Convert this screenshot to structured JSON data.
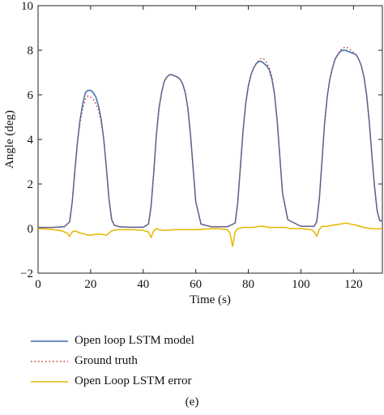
{
  "chart_data": {
    "type": "line",
    "xlabel": "Time (s)",
    "ylabel": "Angle (deg)",
    "xlim": [
      0,
      131
    ],
    "ylim": [
      -2,
      10
    ],
    "xticks": [
      0,
      20,
      40,
      60,
      80,
      100,
      120
    ],
    "yticks": [
      -2,
      0,
      2,
      4,
      6,
      8,
      10
    ],
    "grid": false,
    "legend_position": "below",
    "series": [
      {
        "name": "Open loop LSTM model",
        "color": "#3a6fb0",
        "style": "solid",
        "x": [
          0,
          5,
          10,
          12,
          13,
          14,
          15,
          16,
          17,
          18,
          19,
          20,
          21,
          22,
          23,
          24,
          25,
          26,
          27,
          28,
          29,
          31,
          35,
          40,
          42,
          43,
          44,
          45,
          46,
          47,
          48,
          49,
          50,
          51,
          52,
          53,
          54,
          55,
          56,
          57,
          58,
          59,
          60,
          62,
          66,
          72,
          75,
          76,
          77,
          78,
          79,
          80,
          81,
          82,
          83,
          84,
          85,
          86,
          87,
          88,
          89,
          90,
          91,
          92,
          93,
          95,
          100,
          105,
          106,
          107,
          108,
          109,
          110,
          111,
          112,
          113,
          114,
          115,
          116,
          117,
          118,
          119,
          120,
          121,
          122,
          123,
          124,
          125,
          126,
          127,
          128,
          129,
          130,
          131
        ],
        "values": [
          0.05,
          0.05,
          0.08,
          0.3,
          1.2,
          2.6,
          3.9,
          4.9,
          5.6,
          6.1,
          6.2,
          6.2,
          6.1,
          5.9,
          5.5,
          4.9,
          4.0,
          2.7,
          1.3,
          0.4,
          0.15,
          0.08,
          0.06,
          0.06,
          0.2,
          1.0,
          2.5,
          4.2,
          5.4,
          6.1,
          6.6,
          6.8,
          6.9,
          6.9,
          6.85,
          6.8,
          6.7,
          6.5,
          6.1,
          5.4,
          4.2,
          2.7,
          1.2,
          0.2,
          0.08,
          0.08,
          0.25,
          1.2,
          2.8,
          4.4,
          5.6,
          6.4,
          6.9,
          7.2,
          7.4,
          7.5,
          7.5,
          7.4,
          7.3,
          7.1,
          6.7,
          6.0,
          4.8,
          3.2,
          1.6,
          0.4,
          0.1,
          0.1,
          0.3,
          1.3,
          3.0,
          4.7,
          5.9,
          6.7,
          7.2,
          7.6,
          7.8,
          7.95,
          8.0,
          8.0,
          7.95,
          7.9,
          7.85,
          7.8,
          7.6,
          7.3,
          6.8,
          6.0,
          4.8,
          3.3,
          1.9,
          0.8,
          0.35,
          0.35
        ]
      },
      {
        "name": "Ground truth",
        "color": "#c0392b",
        "style": "dotted",
        "x": [
          0,
          5,
          10,
          12,
          13,
          14,
          15,
          16,
          17,
          18,
          19,
          20,
          21,
          22,
          23,
          24,
          25,
          26,
          27,
          28,
          29,
          31,
          35,
          40,
          42,
          43,
          44,
          45,
          46,
          47,
          48,
          49,
          50,
          51,
          52,
          53,
          54,
          55,
          56,
          57,
          58,
          59,
          60,
          62,
          66,
          72,
          75,
          76,
          77,
          78,
          79,
          80,
          81,
          82,
          83,
          84,
          85,
          86,
          87,
          88,
          89,
          90,
          91,
          92,
          93,
          95,
          100,
          105,
          106,
          107,
          108,
          109,
          110,
          111,
          112,
          113,
          114,
          115,
          116,
          117,
          118,
          119,
          120,
          121,
          122,
          123,
          124,
          125,
          126,
          127,
          128,
          129,
          130,
          131
        ],
        "values": [
          0.05,
          0.05,
          0.08,
          0.3,
          1.2,
          2.6,
          3.9,
          4.8,
          5.4,
          5.8,
          5.95,
          5.9,
          5.8,
          5.6,
          5.3,
          4.8,
          4.0,
          2.7,
          1.3,
          0.4,
          0.15,
          0.08,
          0.06,
          0.06,
          0.2,
          1.0,
          2.5,
          4.2,
          5.4,
          6.1,
          6.6,
          6.8,
          6.9,
          6.9,
          6.85,
          6.8,
          6.7,
          6.5,
          6.1,
          5.4,
          4.2,
          2.7,
          1.2,
          0.2,
          0.08,
          0.08,
          0.25,
          1.2,
          2.8,
          4.4,
          5.6,
          6.4,
          6.9,
          7.2,
          7.4,
          7.55,
          7.65,
          7.6,
          7.45,
          7.2,
          6.8,
          6.0,
          4.8,
          3.2,
          1.6,
          0.4,
          0.1,
          0.1,
          0.3,
          1.3,
          3.0,
          4.7,
          5.9,
          6.7,
          7.2,
          7.6,
          7.8,
          8.0,
          8.1,
          8.15,
          8.1,
          8.0,
          7.9,
          7.8,
          7.6,
          7.3,
          6.8,
          6.0,
          4.8,
          3.3,
          1.9,
          0.8,
          0.35,
          0.35
        ]
      },
      {
        "name": "Open Loop LSTM error",
        "color": "#e6b800",
        "style": "solid",
        "x": [
          0,
          3,
          6,
          9,
          11,
          12,
          13,
          14,
          16,
          18,
          19,
          20,
          22,
          24,
          26,
          28,
          30,
          33,
          36,
          40,
          42,
          43,
          44,
          45,
          46,
          48,
          52,
          56,
          60,
          64,
          68,
          72,
          73,
          74,
          75,
          76,
          78,
          80,
          82,
          84,
          86,
          88,
          90,
          92,
          94,
          96,
          100,
          104,
          105,
          106,
          107,
          108,
          110,
          112,
          115,
          117,
          119,
          121,
          124,
          127,
          129,
          131
        ],
        "values": [
          0.0,
          -0.02,
          -0.05,
          -0.1,
          -0.2,
          -0.35,
          -0.15,
          -0.1,
          -0.2,
          -0.25,
          -0.3,
          -0.3,
          -0.25,
          -0.25,
          -0.3,
          -0.1,
          -0.05,
          -0.05,
          -0.05,
          -0.08,
          -0.15,
          -0.4,
          -0.1,
          0.0,
          -0.05,
          -0.08,
          -0.05,
          -0.05,
          -0.05,
          -0.02,
          0.0,
          -0.05,
          -0.2,
          -0.8,
          -0.15,
          0.0,
          0.05,
          0.05,
          0.05,
          0.1,
          0.1,
          0.05,
          0.05,
          0.05,
          0.05,
          0.0,
          0.0,
          -0.05,
          -0.15,
          -0.35,
          -0.05,
          0.1,
          0.1,
          0.15,
          0.2,
          0.25,
          0.2,
          0.15,
          0.05,
          0.0,
          -0.02,
          0.0
        ]
      }
    ],
    "caption": "(e)"
  }
}
